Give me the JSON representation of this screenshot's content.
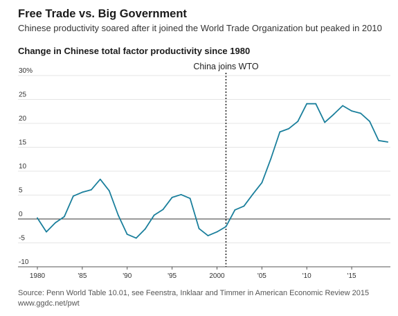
{
  "header": {
    "title": "Free Trade vs. Big Government",
    "subtitle": "Chinese productivity soared after it joined the World Trade Organization but peaked in 2010"
  },
  "chart_data": {
    "type": "line",
    "title": "Change in Chinese total factor productivity since 1980",
    "xlabel": "",
    "ylabel": "",
    "xlim": [
      1980,
      2019
    ],
    "ylim": [
      -10,
      30
    ],
    "grid": true,
    "y_ticks": [
      30,
      25,
      20,
      15,
      10,
      5,
      0,
      -5,
      -10
    ],
    "y_tick_labels": [
      "30%",
      "25",
      "20",
      "15",
      "10",
      "5",
      "0",
      "-5",
      "-10"
    ],
    "x_ticks": [
      1980,
      1985,
      1990,
      1995,
      2000,
      2005,
      2010,
      2015
    ],
    "x_tick_labels": [
      "1980",
      "'85",
      "'90",
      "'95",
      "2000",
      "'05",
      "'10",
      "'15"
    ],
    "series": [
      {
        "color": "#1a7f9c",
        "x": [
          1980,
          1981,
          1982,
          1983,
          1984,
          1985,
          1986,
          1987,
          1988,
          1989,
          1990,
          1991,
          1992,
          1993,
          1994,
          1995,
          1996,
          1997,
          1998,
          1999,
          2000,
          2001,
          2002,
          2003,
          2004,
          2005,
          2006,
          2007,
          2008,
          2009,
          2010,
          2011,
          2012,
          2013,
          2014,
          2015,
          2016,
          2017,
          2018,
          2019
        ],
        "y": [
          0.2,
          -2.7,
          -0.8,
          0.5,
          4.8,
          5.6,
          6.1,
          8.3,
          5.9,
          0.8,
          -3.2,
          -4.0,
          -2.1,
          0.8,
          2.0,
          4.5,
          5.1,
          4.3,
          -2.0,
          -3.5,
          -2.7,
          -1.6,
          1.9,
          2.7,
          5.2,
          7.6,
          12.6,
          18.2,
          18.9,
          20.4,
          24.1,
          24.1,
          20.2,
          21.9,
          23.7,
          22.6,
          22.1,
          20.4,
          16.4,
          16.1
        ]
      }
    ],
    "annotations": [
      {
        "x": 2001,
        "label": "China joins WTO",
        "style": "dotted-vertical"
      }
    ]
  },
  "footer": {
    "source_line1": "Source: Penn World Table 10.01, see Feenstra, Inklaar and Timmer in American Economic Review 2015",
    "source_line2": "www.ggdc.net/pwt"
  }
}
